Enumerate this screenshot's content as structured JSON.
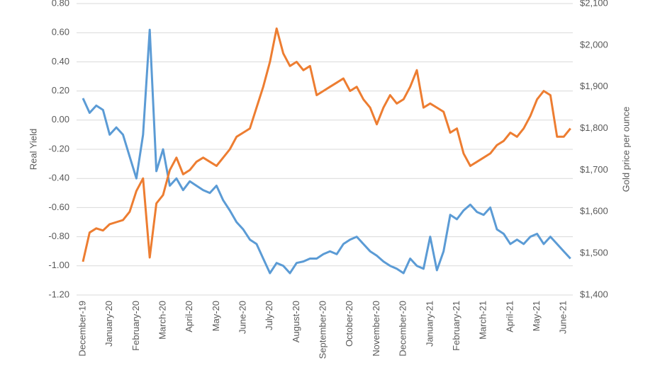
{
  "chart_data": {
    "type": "line",
    "ylabel": "Real Yield",
    "y2label": "Gold price per ounce",
    "categories": [
      "December-19",
      null,
      null,
      null,
      "January-20",
      null,
      null,
      null,
      "February-20",
      null,
      null,
      null,
      "March-20",
      null,
      null,
      null,
      "April-20",
      null,
      null,
      null,
      "May-20",
      null,
      null,
      null,
      "June-20",
      null,
      null,
      null,
      "July-20",
      null,
      null,
      null,
      "August-20",
      null,
      null,
      null,
      "September-20",
      null,
      null,
      null,
      "October-20",
      null,
      null,
      null,
      "November-20",
      null,
      null,
      null,
      "December-20",
      null,
      null,
      null,
      "January-21",
      null,
      null,
      null,
      "February-21",
      null,
      null,
      null,
      "March-21",
      null,
      null,
      null,
      "April-21",
      null,
      null,
      null,
      "May-21",
      null,
      null,
      null,
      "June-21",
      null
    ],
    "ylim": [
      -1.2,
      0.8
    ],
    "yticks": [
      {
        "value": -1.2,
        "label": "-1.20"
      },
      {
        "value": -1.0,
        "label": "-1.00"
      },
      {
        "value": -0.8,
        "label": "-0.80"
      },
      {
        "value": -0.6,
        "label": "-0.60"
      },
      {
        "value": -0.4,
        "label": "-0.40"
      },
      {
        "value": -0.2,
        "label": "-0.20"
      },
      {
        "value": 0,
        "label": "0.00"
      },
      {
        "value": 0.2,
        "label": "0.20"
      },
      {
        "value": 0.4,
        "label": "0.40"
      },
      {
        "value": 0.6,
        "label": "0.60"
      },
      {
        "value": 0.8,
        "label": "0.80"
      }
    ],
    "y2lim": [
      1400,
      2100
    ],
    "y2ticks": [
      {
        "value": 1400,
        "label": "$1,400"
      },
      {
        "value": 1500,
        "label": "$1,500"
      },
      {
        "value": 1600,
        "label": "$1,600"
      },
      {
        "value": 1700,
        "label": "$1,700"
      },
      {
        "value": 1800,
        "label": "$1,800"
      },
      {
        "value": 1900,
        "label": "$1,900"
      },
      {
        "value": 2000,
        "label": "$2,000"
      },
      {
        "value": 2100,
        "label": "$2,100"
      }
    ],
    "grid": true,
    "series": [
      {
        "color": "#5b9bd5",
        "values": [
          0.15,
          0.05,
          0.1,
          0.07,
          -0.1,
          -0.05,
          -0.1,
          -0.25,
          -0.4,
          -0.1,
          0.62,
          -0.35,
          -0.2,
          -0.45,
          -0.4,
          -0.48,
          -0.42,
          -0.45,
          -0.48,
          -0.5,
          -0.45,
          -0.55,
          -0.62,
          -0.7,
          -0.75,
          -0.82,
          -0.85,
          -0.95,
          -1.05,
          -0.98,
          -1.0,
          -1.05,
          -0.98,
          -0.97,
          -0.95,
          -0.95,
          -0.92,
          -0.9,
          -0.92,
          -0.85,
          -0.82,
          -0.8,
          -0.85,
          -0.9,
          -0.93,
          -0.97,
          -1.0,
          -1.02,
          -1.05,
          -0.95,
          -1.0,
          -1.02,
          -0.8,
          -1.03,
          -0.9,
          -0.65,
          -0.68,
          -0.62,
          -0.58,
          -0.63,
          -0.65,
          -0.6,
          -0.75,
          -0.78,
          -0.85,
          -0.82,
          -0.85,
          -0.8,
          -0.78,
          -0.85,
          -0.8,
          -0.85,
          -0.9,
          -0.95
        ]
      },
      {
        "color": "#ed7d31",
        "axis": "y2",
        "values": [
          1480,
          1550,
          1560,
          1555,
          1570,
          1575,
          1580,
          1600,
          1650,
          1680,
          1490,
          1620,
          1640,
          1700,
          1730,
          1690,
          1700,
          1720,
          1730,
          1720,
          1710,
          1730,
          1750,
          1780,
          1790,
          1800,
          1850,
          1900,
          1960,
          2040,
          1980,
          1950,
          1960,
          1940,
          1950,
          1880,
          1890,
          1900,
          1910,
          1920,
          1890,
          1900,
          1870,
          1850,
          1810,
          1850,
          1880,
          1860,
          1870,
          1900,
          1940,
          1850,
          1860,
          1850,
          1840,
          1790,
          1800,
          1740,
          1710,
          1720,
          1730,
          1740,
          1760,
          1770,
          1790,
          1780,
          1800,
          1830,
          1870,
          1890,
          1880,
          1780,
          1780,
          1800
        ]
      }
    ]
  }
}
